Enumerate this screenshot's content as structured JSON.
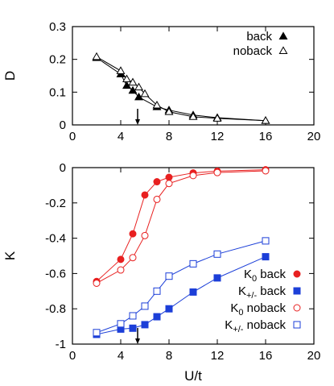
{
  "chart_data": [
    {
      "type": "line",
      "ylabel": "D",
      "xlabel": "",
      "xlim": [
        0,
        20
      ],
      "ylim": [
        0,
        0.3
      ],
      "xticks": [
        "0",
        "4",
        "8",
        "12",
        "16",
        "20"
      ],
      "yticks": [
        "0",
        "0.1",
        "0.2",
        "0.3"
      ],
      "legend_position": "top-right",
      "arrow_x": 5.4,
      "series": [
        {
          "name": "back",
          "marker": "filled-triangle",
          "color": "#000000",
          "x": [
            2,
            4,
            4.5,
            5,
            5.5,
            7,
            8,
            10,
            12,
            16
          ],
          "y": [
            0.205,
            0.155,
            0.12,
            0.105,
            0.085,
            0.055,
            0.045,
            0.03,
            0.022,
            0.013
          ]
        },
        {
          "name": "noback",
          "marker": "open-triangle",
          "color": "#000000",
          "x": [
            2,
            4,
            4.5,
            5,
            5.5,
            6,
            7,
            8,
            10,
            12,
            16
          ],
          "y": [
            0.208,
            0.165,
            0.14,
            0.13,
            0.115,
            0.095,
            0.06,
            0.04,
            0.025,
            0.02,
            0.013
          ]
        }
      ]
    },
    {
      "type": "line",
      "ylabel": "K",
      "xlabel": "U/t",
      "xlim": [
        0,
        20
      ],
      "ylim": [
        -1,
        0
      ],
      "xticks": [
        "0",
        "4",
        "8",
        "12",
        "16",
        "20"
      ],
      "yticks": [
        "0",
        "-0.2",
        "-0.4",
        "-0.6",
        "-0.8",
        "-1"
      ],
      "legend_position": "bottom-right",
      "arrow_x": 5.4,
      "series": [
        {
          "name_main": "K",
          "name_sub": "0",
          "name_suffix": " back",
          "marker": "filled-circle",
          "color": "#e82020",
          "x": [
            2,
            4,
            5,
            6,
            7,
            8,
            10,
            12,
            16
          ],
          "y": [
            -0.645,
            -0.52,
            -0.375,
            -0.155,
            -0.08,
            -0.055,
            -0.03,
            -0.02,
            -0.012
          ]
        },
        {
          "name_main": "K",
          "name_sub": "+/-",
          "name_suffix": " back",
          "marker": "filled-square",
          "color": "#1c3fd8",
          "x": [
            2,
            4,
            5,
            6,
            7,
            8,
            10,
            12,
            16
          ],
          "y": [
            -0.945,
            -0.915,
            -0.91,
            -0.89,
            -0.845,
            -0.8,
            -0.705,
            -0.625,
            -0.505
          ]
        },
        {
          "name_main": "K",
          "name_sub": "0",
          "name_suffix": " noback",
          "marker": "open-circle",
          "color": "#e82020",
          "x": [
            2,
            4,
            5,
            6,
            7,
            8,
            10,
            12,
            16
          ],
          "y": [
            -0.655,
            -0.58,
            -0.51,
            -0.385,
            -0.18,
            -0.09,
            -0.045,
            -0.028,
            -0.018
          ]
        },
        {
          "name_main": "K",
          "name_sub": "+/-",
          "name_suffix": " noback",
          "marker": "open-square",
          "color": "#1c3fd8",
          "x": [
            2,
            4,
            5,
            6,
            7,
            8,
            10,
            12,
            16
          ],
          "y": [
            -0.935,
            -0.885,
            -0.84,
            -0.785,
            -0.7,
            -0.615,
            -0.545,
            -0.49,
            -0.415
          ]
        }
      ]
    }
  ]
}
